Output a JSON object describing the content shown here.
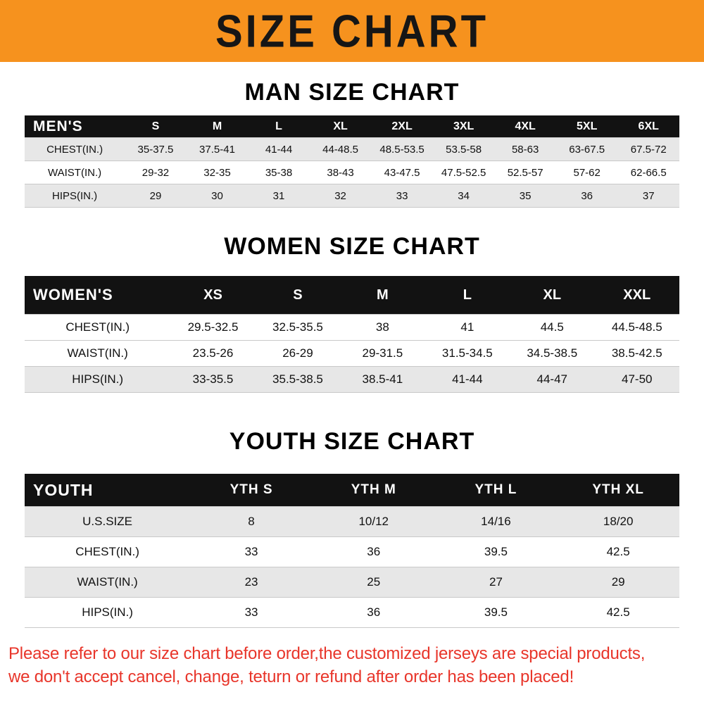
{
  "banner": {
    "title": "SIZE CHART",
    "bg_color": "#f6921e",
    "text_color": "#161616"
  },
  "sections": [
    {
      "heading": "MAN SIZE CHART",
      "table": {
        "label": "MEN'S",
        "columns": [
          "S",
          "M",
          "L",
          "XL",
          "2XL",
          "3XL",
          "4XL",
          "5XL",
          "6XL"
        ],
        "rows": [
          {
            "label": "CHEST(IN.)",
            "values": [
              "35-37.5",
              "37.5-41",
              "41-44",
              "44-48.5",
              "48.5-53.5",
              "53.5-58",
              "58-63",
              "63-67.5",
              "67.5-72"
            ]
          },
          {
            "label": "WAIST(IN.)",
            "values": [
              "29-32",
              "32-35",
              "35-38",
              "38-43",
              "43-47.5",
              "47.5-52.5",
              "52.5-57",
              "57-62",
              "62-66.5"
            ]
          },
          {
            "label": "HIPS(IN.)",
            "values": [
              "29",
              "30",
              "31",
              "32",
              "33",
              "34",
              "35",
              "36",
              "37"
            ]
          }
        ]
      }
    },
    {
      "heading": "WOMEN SIZE CHART",
      "table": {
        "label": "WOMEN'S",
        "columns": [
          "XS",
          "S",
          "M",
          "L",
          "XL",
          "XXL"
        ],
        "rows": [
          {
            "label": "CHEST(IN.)",
            "values": [
              "29.5-32.5",
              "32.5-35.5",
              "38",
              "41",
              "44.5",
              "44.5-48.5"
            ]
          },
          {
            "label": "WAIST(IN.)",
            "values": [
              "23.5-26",
              "26-29",
              "29-31.5",
              "31.5-34.5",
              "34.5-38.5",
              "38.5-42.5"
            ]
          },
          {
            "label": "HIPS(IN.)",
            "values": [
              "33-35.5",
              "35.5-38.5",
              "38.5-41",
              "41-44",
              "44-47",
              "47-50"
            ]
          }
        ]
      }
    },
    {
      "heading": "YOUTH SIZE CHART",
      "table": {
        "label": "YOUTH",
        "columns": [
          "YTH S",
          "YTH M",
          "YTH L",
          "YTH XL"
        ],
        "rows": [
          {
            "label": "U.S.SIZE",
            "values": [
              "8",
              "10/12",
              "14/16",
              "18/20"
            ]
          },
          {
            "label": "CHEST(IN.)",
            "values": [
              "33",
              "36",
              "39.5",
              "42.5"
            ]
          },
          {
            "label": "WAIST(IN.)",
            "values": [
              "23",
              "25",
              "27",
              "29"
            ]
          },
          {
            "label": "HIPS(IN.)",
            "values": [
              "33",
              "36",
              "39.5",
              "42.5"
            ]
          }
        ]
      }
    }
  ],
  "footer": {
    "color": "#e8352a",
    "lines": [
      "Please refer to our size chart before order,the customized jerseys are special products,",
      "we don't accept cancel, change, teturn or refund after order has been placed!"
    ]
  }
}
